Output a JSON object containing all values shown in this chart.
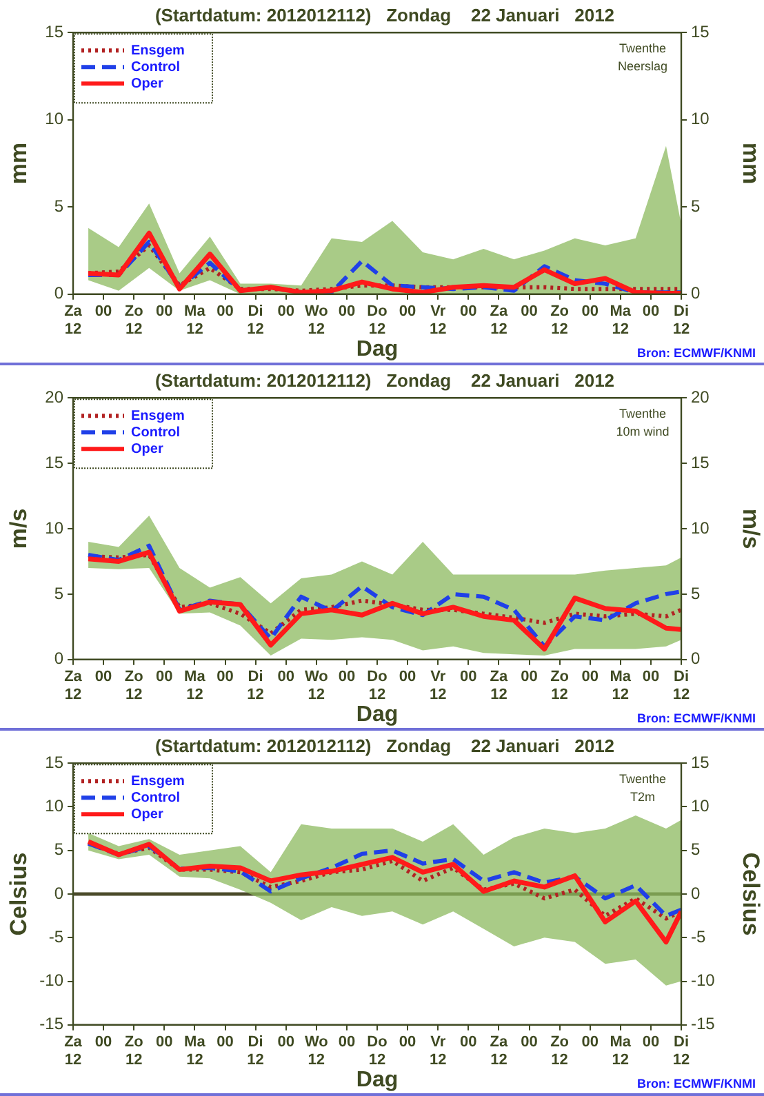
{
  "chart_data": [
    {
      "type": "line",
      "title": "(Startdatum: 2012012112)   Zondag    22 Januari   2012",
      "xlabel": "Dag",
      "ylabel": "mm",
      "y2label": "mm",
      "legend": "top left",
      "grid": false,
      "annotations": [
        "Twenthe\nNeerslag",
        "Bron: ECMWF/KNMI"
      ],
      "x": [
        "2012-01-21T18:00",
        "2012-01-22T06:00",
        "2012-01-22T18:00",
        "2012-01-23T06:00",
        "2012-01-23T18:00",
        "2012-01-24T06:00",
        "2012-01-24T18:00",
        "2012-01-25T06:00",
        "2012-01-25T18:00",
        "2012-01-26T06:00",
        "2012-01-26T18:00",
        "2012-01-27T06:00",
        "2012-01-27T18:00",
        "2012-01-28T06:00",
        "2012-01-28T18:00",
        "2012-01-29T06:00",
        "2012-01-29T18:00",
        "2012-01-30T06:00",
        "2012-01-30T18:00",
        "2012-01-31T06:00",
        "2012-01-31T12:00"
      ],
      "xlim": [
        "2012-01-21T12:00",
        "2012-01-31T12:00"
      ],
      "xticks": [
        {
          "value": "2012-01-21T12:00",
          "label": "Za\n12"
        },
        {
          "value": "2012-01-22T00:00",
          "label": "00"
        },
        {
          "value": "2012-01-22T12:00",
          "label": "Zo\n12"
        },
        {
          "value": "2012-01-23T00:00",
          "label": "00"
        },
        {
          "value": "2012-01-23T12:00",
          "label": "Ma\n12"
        },
        {
          "value": "2012-01-24T00:00",
          "label": "00"
        },
        {
          "value": "2012-01-24T12:00",
          "label": "Di\n12"
        },
        {
          "value": "2012-01-25T00:00",
          "label": "00"
        },
        {
          "value": "2012-01-25T12:00",
          "label": "Wo\n12"
        },
        {
          "value": "2012-01-26T00:00",
          "label": "00"
        },
        {
          "value": "2012-01-26T12:00",
          "label": "Do\n12"
        },
        {
          "value": "2012-01-27T00:00",
          "label": "00"
        },
        {
          "value": "2012-01-27T12:00",
          "label": "Vr\n12"
        },
        {
          "value": "2012-01-28T00:00",
          "label": "00"
        },
        {
          "value": "2012-01-28T12:00",
          "label": "Za\n12"
        },
        {
          "value": "2012-01-29T00:00",
          "label": "00"
        },
        {
          "value": "2012-01-29T12:00",
          "label": "Zo\n12"
        },
        {
          "value": "2012-01-30T00:00",
          "label": "00"
        },
        {
          "value": "2012-01-30T12:00",
          "label": "Ma\n12"
        },
        {
          "value": "2012-01-31T00:00",
          "label": "00"
        },
        {
          "value": "2012-01-31T12:00",
          "label": "Di\n12"
        }
      ],
      "ylim": [
        0,
        15
      ],
      "yticks": [
        0,
        5,
        10,
        15
      ],
      "y2lim": [
        0,
        15
      ],
      "y2ticks": [
        0,
        5,
        10,
        15
      ],
      "series": [
        {
          "name": "Ensgem",
          "color": "#b22222",
          "line_style": "dotted",
          "values": [
            1.2,
            1.3,
            2.8,
            0.5,
            1.5,
            0.3,
            0.3,
            0.2,
            0.3,
            0.5,
            0.5,
            0.4,
            0.4,
            0.4,
            0.4,
            0.4,
            0.3,
            0.3,
            0.3,
            0.3,
            0.3
          ],
          "lower": [
            0.8,
            0.2,
            1.5,
            0.2,
            0.8,
            0,
            0,
            0,
            0,
            0,
            0,
            0,
            0,
            0,
            0,
            0,
            0,
            0,
            0,
            0,
            0
          ],
          "upper": [
            3.8,
            2.7,
            5.2,
            1.2,
            3.3,
            0.6,
            0.6,
            0.5,
            3.2,
            3.0,
            4.2,
            2.4,
            2.0,
            2.6,
            2.0,
            2.5,
            3.2,
            2.8,
            3.2,
            8.5,
            4.0
          ]
        },
        {
          "name": "Control",
          "color": "#2040e8",
          "line_style": "dashed",
          "values": [
            1.1,
            1.1,
            3.0,
            0.4,
            1.8,
            0.2,
            0.4,
            0.1,
            0.1,
            1.9,
            0.5,
            0.4,
            0.3,
            0.4,
            0.2,
            1.6,
            0.8,
            0.6,
            0.1,
            0.1,
            0.1
          ]
        },
        {
          "name": "Oper",
          "color": "#ff1a1a",
          "line_style": "solid",
          "values": [
            1.2,
            1.1,
            3.5,
            0.3,
            2.3,
            0.2,
            0.4,
            0.1,
            0.2,
            0.7,
            0.3,
            0.1,
            0.4,
            0.5,
            0.4,
            1.4,
            0.6,
            0.9,
            0.1,
            0.05,
            0.05
          ]
        }
      ]
    },
    {
      "type": "line",
      "title": "(Startdatum: 2012012112)   Zondag    22 Januari   2012",
      "xlabel": "Dag",
      "ylabel": "m/s",
      "y2label": "m/s",
      "legend": "top left",
      "grid": false,
      "annotations": [
        "Twenthe\n10m wind",
        "Bron: ECMWF/KNMI"
      ],
      "x": [
        "2012-01-21T18:00",
        "2012-01-22T06:00",
        "2012-01-22T18:00",
        "2012-01-23T06:00",
        "2012-01-23T18:00",
        "2012-01-24T06:00",
        "2012-01-24T18:00",
        "2012-01-25T06:00",
        "2012-01-25T18:00",
        "2012-01-26T06:00",
        "2012-01-26T18:00",
        "2012-01-27T06:00",
        "2012-01-27T18:00",
        "2012-01-28T06:00",
        "2012-01-28T18:00",
        "2012-01-29T06:00",
        "2012-01-29T18:00",
        "2012-01-30T06:00",
        "2012-01-30T18:00",
        "2012-01-31T06:00",
        "2012-01-31T12:00"
      ],
      "xlim": [
        "2012-01-21T12:00",
        "2012-01-31T12:00"
      ],
      "xticks": [
        {
          "value": "2012-01-21T12:00",
          "label": "Za\n12"
        },
        {
          "value": "2012-01-22T00:00",
          "label": "00"
        },
        {
          "value": "2012-01-22T12:00",
          "label": "Zo\n12"
        },
        {
          "value": "2012-01-23T00:00",
          "label": "00"
        },
        {
          "value": "2012-01-23T12:00",
          "label": "Ma\n12"
        },
        {
          "value": "2012-01-24T00:00",
          "label": "00"
        },
        {
          "value": "2012-01-24T12:00",
          "label": "Di\n12"
        },
        {
          "value": "2012-01-25T00:00",
          "label": "00"
        },
        {
          "value": "2012-01-25T12:00",
          "label": "Wo\n12"
        },
        {
          "value": "2012-01-26T00:00",
          "label": "00"
        },
        {
          "value": "2012-01-26T12:00",
          "label": "Do\n12"
        },
        {
          "value": "2012-01-27T00:00",
          "label": "00"
        },
        {
          "value": "2012-01-27T12:00",
          "label": "Vr\n12"
        },
        {
          "value": "2012-01-28T00:00",
          "label": "00"
        },
        {
          "value": "2012-01-28T12:00",
          "label": "Za\n12"
        },
        {
          "value": "2012-01-29T00:00",
          "label": "00"
        },
        {
          "value": "2012-01-29T12:00",
          "label": "Zo\n12"
        },
        {
          "value": "2012-01-30T00:00",
          "label": "00"
        },
        {
          "value": "2012-01-30T12:00",
          "label": "Ma\n12"
        },
        {
          "value": "2012-01-31T00:00",
          "label": "00"
        },
        {
          "value": "2012-01-31T12:00",
          "label": "Di\n12"
        }
      ],
      "ylim": [
        0,
        20
      ],
      "yticks": [
        0,
        5,
        10,
        15,
        20
      ],
      "y2lim": [
        0,
        20
      ],
      "y2ticks": [
        0,
        5,
        10,
        15,
        20
      ],
      "series": [
        {
          "name": "Ensgem",
          "color": "#b22222",
          "line_style": "dotted",
          "values": [
            7.9,
            7.8,
            8.0,
            4.0,
            4.3,
            3.5,
            2.0,
            3.8,
            4.0,
            4.5,
            4.2,
            3.8,
            3.8,
            3.5,
            3.2,
            2.8,
            3.5,
            3.3,
            3.5,
            3.3,
            3.8
          ],
          "lower": [
            7.0,
            6.9,
            7.0,
            3.5,
            3.6,
            2.6,
            0.3,
            1.6,
            1.5,
            1.7,
            1.5,
            0.7,
            1.0,
            0.5,
            0.4,
            0.3,
            0.8,
            0.8,
            0.8,
            1.0,
            1.5
          ],
          "upper": [
            9.0,
            8.6,
            11.0,
            7.0,
            5.5,
            6.3,
            4.3,
            6.2,
            6.5,
            7.5,
            6.5,
            9.0,
            6.5,
            6.5,
            6.5,
            6.5,
            6.5,
            6.8,
            7.0,
            7.2,
            7.8
          ]
        },
        {
          "name": "Control",
          "color": "#2040e8",
          "line_style": "dashed",
          "values": [
            8.0,
            7.6,
            8.7,
            3.8,
            4.5,
            4.2,
            1.6,
            4.8,
            3.7,
            5.6,
            4.0,
            3.4,
            5.0,
            4.8,
            3.8,
            1.0,
            3.3,
            3.0,
            4.3,
            5.0,
            5.2
          ]
        },
        {
          "name": "Oper",
          "color": "#ff1a1a",
          "line_style": "solid",
          "values": [
            7.7,
            7.5,
            8.2,
            3.7,
            4.4,
            4.2,
            1.1,
            3.5,
            3.8,
            3.4,
            4.3,
            3.5,
            4.0,
            3.3,
            3.0,
            0.8,
            4.7,
            3.9,
            3.7,
            2.4,
            2.3
          ]
        }
      ]
    },
    {
      "type": "line",
      "title": "(Startdatum: 2012012112)   Zondag    22 Januari   2012",
      "xlabel": "Dag",
      "ylabel": "Celsius",
      "y2label": "Celsius",
      "legend": "top left",
      "grid": false,
      "annotations": [
        "Twenthe\nT2m",
        "Bron: ECMWF/KNMI"
      ],
      "ref_lines": [
        {
          "axis": "y",
          "value": 0,
          "color": "#4a4a2a"
        }
      ],
      "x": [
        "2012-01-21T18:00",
        "2012-01-22T06:00",
        "2012-01-22T18:00",
        "2012-01-23T06:00",
        "2012-01-23T18:00",
        "2012-01-24T06:00",
        "2012-01-24T18:00",
        "2012-01-25T06:00",
        "2012-01-25T18:00",
        "2012-01-26T06:00",
        "2012-01-26T18:00",
        "2012-01-27T06:00",
        "2012-01-27T18:00",
        "2012-01-28T06:00",
        "2012-01-28T18:00",
        "2012-01-29T06:00",
        "2012-01-29T18:00",
        "2012-01-30T06:00",
        "2012-01-30T18:00",
        "2012-01-31T06:00",
        "2012-01-31T12:00"
      ],
      "xlim": [
        "2012-01-21T12:00",
        "2012-01-31T12:00"
      ],
      "xticks": [
        {
          "value": "2012-01-21T12:00",
          "label": "Za\n12"
        },
        {
          "value": "2012-01-22T00:00",
          "label": "00"
        },
        {
          "value": "2012-01-22T12:00",
          "label": "Zo\n12"
        },
        {
          "value": "2012-01-23T00:00",
          "label": "00"
        },
        {
          "value": "2012-01-23T12:00",
          "label": "Ma\n12"
        },
        {
          "value": "2012-01-24T00:00",
          "label": "00"
        },
        {
          "value": "2012-01-24T12:00",
          "label": "Di\n12"
        },
        {
          "value": "2012-01-25T00:00",
          "label": "00"
        },
        {
          "value": "2012-01-25T12:00",
          "label": "Wo\n12"
        },
        {
          "value": "2012-01-26T00:00",
          "label": "00"
        },
        {
          "value": "2012-01-26T12:00",
          "label": "Do\n12"
        },
        {
          "value": "2012-01-27T00:00",
          "label": "00"
        },
        {
          "value": "2012-01-27T12:00",
          "label": "Vr\n12"
        },
        {
          "value": "2012-01-28T00:00",
          "label": "00"
        },
        {
          "value": "2012-01-28T12:00",
          "label": "Za\n12"
        },
        {
          "value": "2012-01-29T00:00",
          "label": "00"
        },
        {
          "value": "2012-01-29T12:00",
          "label": "Zo\n12"
        },
        {
          "value": "2012-01-30T00:00",
          "label": "00"
        },
        {
          "value": "2012-01-30T12:00",
          "label": "Ma\n12"
        },
        {
          "value": "2012-01-31T00:00",
          "label": "00"
        },
        {
          "value": "2012-01-31T12:00",
          "label": "Di\n12"
        }
      ],
      "ylim": [
        -15,
        15
      ],
      "yticks": [
        -15,
        -10,
        -5,
        0,
        5,
        10,
        15
      ],
      "y2lim": [
        -15,
        15
      ],
      "y2ticks": [
        -15,
        -10,
        -5,
        0,
        5,
        10,
        15
      ],
      "series": [
        {
          "name": "Ensgem",
          "color": "#b22222",
          "line_style": "dotted",
          "values": [
            5.8,
            4.6,
            5.3,
            2.8,
            2.8,
            2.5,
            0.8,
            1.5,
            2.5,
            2.8,
            3.8,
            1.5,
            3.0,
            0.5,
            1.2,
            -0.5,
            0.5,
            -2.5,
            -0.5,
            -2.8,
            -2.0
          ],
          "lower": [
            5.0,
            4.0,
            4.5,
            2.0,
            1.8,
            0.5,
            -1.0,
            -3.0,
            -1.5,
            -2.5,
            -2.0,
            -3.5,
            -2.0,
            -4.0,
            -6.0,
            -5.0,
            -5.5,
            -8.0,
            -7.5,
            -10.5,
            -10.0
          ],
          "upper": [
            7.0,
            5.5,
            6.3,
            4.5,
            5.0,
            5.5,
            2.5,
            8.0,
            7.5,
            7.5,
            7.5,
            6.0,
            8.0,
            4.5,
            6.5,
            7.5,
            7.0,
            7.5,
            9.0,
            7.5,
            8.5
          ]
        },
        {
          "name": "Control",
          "color": "#2040e8",
          "line_style": "dashed",
          "values": [
            5.8,
            4.5,
            5.5,
            2.9,
            3.0,
            2.6,
            0.3,
            1.8,
            3.0,
            4.6,
            5.0,
            3.5,
            4.0,
            1.5,
            2.5,
            1.3,
            2.0,
            -0.5,
            1.0,
            -2.5,
            -1.8
          ]
        },
        {
          "name": "Oper",
          "color": "#ff1a1a",
          "line_style": "solid",
          "values": [
            6.0,
            4.5,
            5.7,
            2.8,
            3.2,
            3.0,
            1.5,
            2.2,
            2.6,
            3.4,
            4.2,
            2.5,
            3.4,
            0.3,
            1.5,
            0.8,
            2.1,
            -3.2,
            -0.8,
            -5.5,
            -2.0
          ]
        }
      ]
    }
  ]
}
